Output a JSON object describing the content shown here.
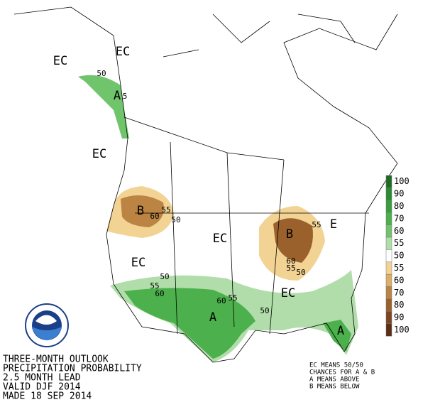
{
  "map_labels": [
    "EC",
    "EC",
    "A",
    "EC",
    "B",
    "EC",
    "EC",
    "A",
    "B",
    "E",
    "EC",
    "A"
  ],
  "contour_labels": [
    50,
    5,
    55,
    60,
    50,
    50,
    55,
    60,
    60,
    55,
    50,
    60,
    55,
    50,
    55
  ],
  "legend": [
    {
      "label": 100,
      "color": "#1e6b24"
    },
    {
      "label": 90,
      "color": "#2c8a32"
    },
    {
      "label": 80,
      "color": "#3a9e3e"
    },
    {
      "label": 70,
      "color": "#4cb04c"
    },
    {
      "label": 60,
      "color": "#70c46c"
    },
    {
      "label": 55,
      "color": "#b0ddaa"
    },
    {
      "label": 50,
      "color": "#ffffff"
    },
    {
      "label": 55,
      "color": "#f2d394"
    },
    {
      "label": 60,
      "color": "#dcae66"
    },
    {
      "label": 70,
      "color": "#bb8442"
    },
    {
      "label": 80,
      "color": "#9b612c"
    },
    {
      "label": 90,
      "color": "#7b4621"
    },
    {
      "label": 100,
      "color": "#5a2f16"
    }
  ],
  "title_lines": [
    "THREE-MONTH OUTLOOK",
    "PRECIPITATION PROBABILITY",
    "2.5 MONTH LEAD",
    "VALID DJF 2014",
    "MADE 18 SEP 2014"
  ],
  "key_lines": [
    "EC MEANS 50/50",
    "CHANCES FOR A & B",
    "A MEANS ABOVE",
    "B MEANS BELOW"
  ]
}
